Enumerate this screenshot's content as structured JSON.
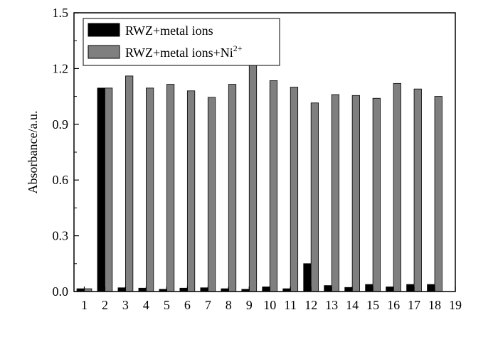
{
  "chart_data": {
    "type": "bar",
    "title": "",
    "xlabel": "",
    "ylabel": "Absorbance/a.u.",
    "xlim": [
      0.5,
      19
    ],
    "ylim": [
      0,
      1.5
    ],
    "x_ticks": [
      1,
      2,
      3,
      4,
      5,
      6,
      7,
      8,
      9,
      10,
      11,
      12,
      13,
      14,
      15,
      16,
      17,
      18,
      19
    ],
    "y_ticks": [
      0.0,
      0.3,
      0.6,
      0.9,
      1.2,
      1.5
    ],
    "y_tick_labels": [
      "0.0",
      "0.3",
      "0.6",
      "0.9",
      "1.2",
      "1.5"
    ],
    "categories": [
      1,
      2,
      3,
      4,
      5,
      6,
      7,
      8,
      9,
      10,
      11,
      12,
      13,
      14,
      15,
      16,
      17,
      18
    ],
    "series": [
      {
        "name": "RWZ+metal ions",
        "color": "#000000",
        "values": [
          0.015,
          1.095,
          0.02,
          0.018,
          0.012,
          0.018,
          0.02,
          0.015,
          0.012,
          0.025,
          0.015,
          0.15,
          0.032,
          0.022,
          0.038,
          0.025,
          0.038,
          0.038
        ]
      },
      {
        "name": "RWZ+metal ions+Ni",
        "name_superscript": "2+",
        "color": "#7f7f7f",
        "values": [
          0.015,
          1.095,
          1.16,
          1.095,
          1.115,
          1.08,
          1.045,
          1.115,
          1.225,
          1.135,
          1.1,
          1.015,
          1.06,
          1.055,
          1.04,
          1.12,
          1.09,
          1.05
        ]
      }
    ],
    "legend_position": "top-left",
    "grid": false
  }
}
